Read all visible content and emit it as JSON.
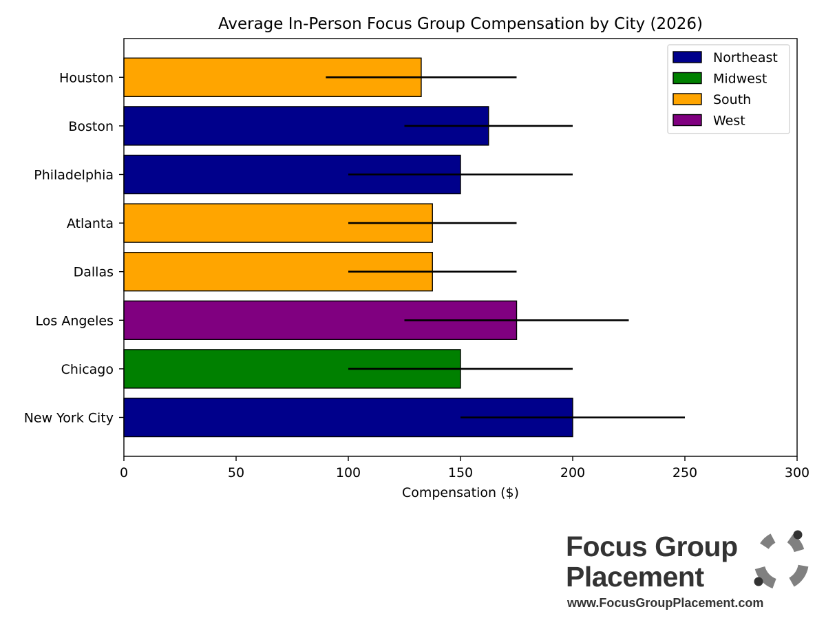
{
  "chart_data": {
    "type": "bar",
    "orientation": "horizontal",
    "title": "Average In-Person Focus Group Compensation by City (2026)",
    "xlabel": "Compensation ($)",
    "ylabel": "",
    "xlim": [
      0,
      300
    ],
    "xticks": [
      0,
      50,
      100,
      150,
      200,
      250,
      300
    ],
    "grid": false,
    "legend_position": "top-right",
    "categories": [
      "New York City",
      "Chicago",
      "Los Angeles",
      "Dallas",
      "Atlanta",
      "Philadelphia",
      "Boston",
      "Houston"
    ],
    "values": [
      200,
      150,
      175,
      137.5,
      137.5,
      150,
      162.5,
      132.5
    ],
    "ranges": [
      [
        150,
        250
      ],
      [
        100,
        200
      ],
      [
        125,
        225
      ],
      [
        100,
        175
      ],
      [
        100,
        175
      ],
      [
        100,
        200
      ],
      [
        125,
        200
      ],
      [
        90,
        175
      ]
    ],
    "regions": [
      "Northeast",
      "Midwest",
      "West",
      "South",
      "South",
      "Northeast",
      "Northeast",
      "South"
    ],
    "legend": [
      {
        "name": "Northeast",
        "color": "#00008b"
      },
      {
        "name": "Midwest",
        "color": "#008000"
      },
      {
        "name": "South",
        "color": "#ffa500"
      },
      {
        "name": "West",
        "color": "#800080"
      }
    ]
  },
  "logo": {
    "line1": "Focus Group",
    "line2": "Placement",
    "url": "www.FocusGroupPlacement.com",
    "color": "#333333",
    "mark_color": "#808080"
  }
}
